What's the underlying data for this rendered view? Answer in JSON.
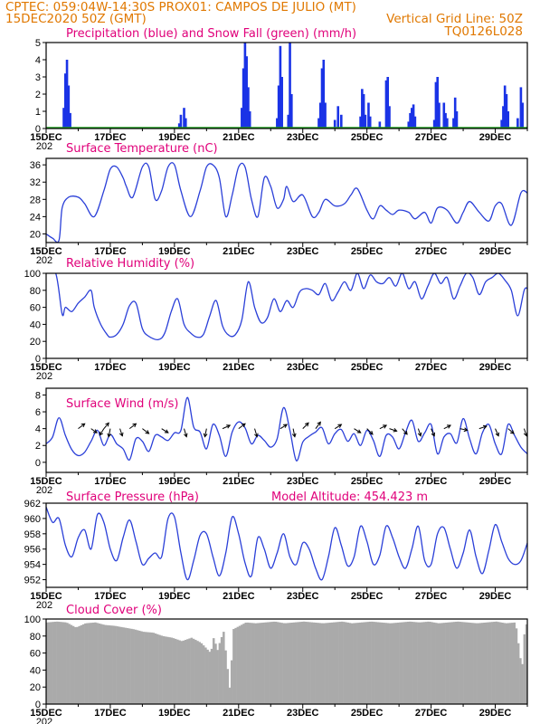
{
  "header": {
    "line1_left": "CPTEC:   059:04W-14:30S   PROX01: CAMPOS DE JULIO (MT)",
    "line2_left": "15DEC2020 50Z (GMT)",
    "line2_right": "Vertical Grid Line: 50Z",
    "line3_right": "TQ0126L028"
  },
  "x_axis": {
    "labels": [
      "15DEC",
      "17DEC",
      "19DEC",
      "21DEC",
      "23DEC",
      "25DEC",
      "27DEC",
      "29DEC"
    ],
    "year_fragment": "202",
    "days_span": 15
  },
  "colors": {
    "precip": "#1a33e6",
    "snow": "#20a020",
    "line": "#2a3fd8",
    "cloud": "#aaaaaa",
    "title": "#e0007a",
    "header": "#e07800",
    "arrow": "#000000"
  },
  "chart_data": [
    {
      "id": "precip",
      "type": "bar",
      "title": "Precipitation (blue) and Snow Fall (green) (mm/h)",
      "ylim": [
        0,
        5
      ],
      "yticks": [
        0,
        1,
        2,
        3,
        4,
        5
      ],
      "x_unit": "days since 15DEC 00Z",
      "snow_value": 0,
      "bars": [
        [
          0.55,
          1.2
        ],
        [
          0.6,
          3.2
        ],
        [
          0.65,
          4.0
        ],
        [
          0.7,
          2.5
        ],
        [
          0.75,
          0.9
        ],
        [
          4.15,
          0.3
        ],
        [
          4.2,
          0.8
        ],
        [
          4.3,
          1.2
        ],
        [
          4.35,
          0.6
        ],
        [
          6.1,
          1.2
        ],
        [
          6.15,
          3.5
        ],
        [
          6.2,
          5.0
        ],
        [
          6.25,
          4.2
        ],
        [
          6.3,
          2.4
        ],
        [
          6.35,
          1.0
        ],
        [
          7.2,
          0.6
        ],
        [
          7.25,
          2.5
        ],
        [
          7.3,
          4.8
        ],
        [
          7.35,
          3.0
        ],
        [
          7.55,
          0.8
        ],
        [
          7.6,
          5.0
        ],
        [
          7.65,
          2.0
        ],
        [
          8.5,
          0.6
        ],
        [
          8.55,
          1.5
        ],
        [
          8.6,
          3.5
        ],
        [
          8.65,
          4.0
        ],
        [
          8.7,
          1.5
        ],
        [
          9.0,
          0.5
        ],
        [
          9.1,
          1.3
        ],
        [
          9.2,
          0.8
        ],
        [
          9.8,
          0.7
        ],
        [
          9.85,
          2.3
        ],
        [
          9.9,
          2.0
        ],
        [
          9.95,
          0.8
        ],
        [
          10.05,
          1.5
        ],
        [
          10.1,
          0.7
        ],
        [
          10.4,
          0.4
        ],
        [
          10.6,
          2.8
        ],
        [
          10.65,
          3.0
        ],
        [
          10.7,
          1.3
        ],
        [
          11.3,
          0.4
        ],
        [
          11.35,
          0.9
        ],
        [
          11.4,
          1.2
        ],
        [
          11.45,
          1.4
        ],
        [
          11.5,
          0.7
        ],
        [
          12.1,
          0.5
        ],
        [
          12.15,
          2.7
        ],
        [
          12.2,
          3.0
        ],
        [
          12.25,
          1.5
        ],
        [
          12.4,
          1.5
        ],
        [
          12.45,
          0.9
        ],
        [
          12.5,
          0.6
        ],
        [
          12.7,
          0.6
        ],
        [
          12.75,
          1.8
        ],
        [
          12.8,
          1.0
        ],
        [
          14.2,
          0.5
        ],
        [
          14.25,
          1.3
        ],
        [
          14.3,
          2.5
        ],
        [
          14.35,
          2.0
        ],
        [
          14.4,
          1.0
        ],
        [
          14.7,
          0.6
        ],
        [
          14.8,
          2.4
        ],
        [
          14.85,
          1.5
        ]
      ]
    },
    {
      "id": "temp",
      "type": "line",
      "title": "Surface Temperature (nC)",
      "ylim": [
        18,
        37.5
      ],
      "yticks": [
        20,
        24,
        28,
        32,
        36
      ],
      "x": [
        0,
        0.2,
        0.4,
        0.5,
        0.7,
        1.0,
        1.2,
        1.5,
        1.8,
        2.0,
        2.2,
        2.4,
        2.5,
        2.7,
        3.0,
        3.2,
        3.4,
        3.6,
        3.8,
        4.0,
        4.2,
        4.5,
        4.8,
        5.0,
        5.2,
        5.4,
        5.6,
        5.8,
        6.0,
        6.2,
        6.4,
        6.6,
        6.8,
        7.0,
        7.2,
        7.4,
        7.5,
        7.7,
        8.0,
        8.3,
        8.5,
        8.7,
        9.0,
        9.3,
        9.5,
        9.7,
        10.0,
        10.2,
        10.4,
        10.6,
        10.8,
        11.0,
        11.3,
        11.5,
        11.8,
        12.0,
        12.2,
        12.5,
        12.8,
        13.0,
        13.2,
        13.5,
        13.8,
        14.0,
        14.2,
        14.5,
        14.8,
        15.0
      ],
      "y": [
        20,
        19,
        18.5,
        26,
        28.5,
        28.5,
        27,
        24,
        30,
        35,
        35.5,
        33,
        31,
        28.5,
        35.5,
        35.5,
        28,
        30,
        35.5,
        36,
        30,
        24,
        30,
        35.5,
        36,
        33,
        24,
        29,
        35.5,
        35.5,
        28,
        24,
        33,
        31,
        26,
        28,
        31,
        27.5,
        29,
        24,
        25,
        28,
        26.5,
        27,
        29,
        30.5,
        25.5,
        23.5,
        26.5,
        25.5,
        24.5,
        25.5,
        25,
        23.5,
        25,
        22.5,
        26,
        25.5,
        22.5,
        25,
        27.5,
        25,
        23,
        26.5,
        27,
        22,
        29.5,
        29.5
      ]
    },
    {
      "id": "rh",
      "type": "line",
      "title": "Relative Humidity (%)",
      "ylim": [
        0,
        100
      ],
      "yticks": [
        0,
        20,
        40,
        60,
        80,
        100
      ],
      "x": [
        0,
        0.3,
        0.5,
        0.6,
        0.8,
        1.0,
        1.2,
        1.4,
        1.5,
        1.7,
        1.9,
        2.0,
        2.2,
        2.4,
        2.6,
        2.8,
        3.0,
        3.2,
        3.5,
        3.7,
        3.9,
        4.1,
        4.3,
        4.5,
        4.7,
        4.9,
        5.1,
        5.3,
        5.5,
        5.7,
        5.9,
        6.1,
        6.3,
        6.5,
        6.7,
        6.9,
        7.1,
        7.3,
        7.5,
        7.7,
        7.9,
        8.1,
        8.3,
        8.5,
        8.7,
        8.9,
        9.1,
        9.3,
        9.5,
        9.7,
        9.9,
        10.1,
        10.3,
        10.5,
        10.7,
        10.9,
        11.1,
        11.3,
        11.5,
        11.7,
        11.9,
        12.1,
        12.3,
        12.5,
        12.7,
        12.9,
        13.1,
        13.3,
        13.5,
        13.7,
        13.9,
        14.1,
        14.3,
        14.5,
        14.7,
        14.9,
        15.0
      ],
      "y": [
        100,
        100,
        52,
        60,
        55,
        65,
        72,
        80,
        60,
        40,
        28,
        25,
        28,
        40,
        62,
        65,
        35,
        26,
        22,
        30,
        55,
        70,
        40,
        30,
        25,
        28,
        50,
        68,
        38,
        27,
        28,
        45,
        90,
        60,
        42,
        48,
        70,
        55,
        68,
        60,
        78,
        82,
        80,
        75,
        88,
        68,
        78,
        90,
        80,
        100,
        82,
        98,
        90,
        88,
        95,
        85,
        100,
        82,
        90,
        70,
        85,
        100,
        88,
        95,
        70,
        85,
        100,
        95,
        75,
        90,
        95,
        100,
        92,
        80,
        50,
        80,
        82
      ]
    },
    {
      "id": "wind",
      "type": "line",
      "title": "Surface Wind (m/s)",
      "ylim": [
        -1.2,
        8.8
      ],
      "yticks": [
        0,
        2,
        4,
        6,
        8
      ],
      "x": [
        0,
        0.2,
        0.4,
        0.6,
        0.8,
        1.0,
        1.2,
        1.4,
        1.6,
        1.8,
        2.0,
        2.2,
        2.4,
        2.6,
        2.8,
        3.0,
        3.2,
        3.4,
        3.6,
        3.8,
        4.0,
        4.2,
        4.4,
        4.6,
        4.8,
        5.0,
        5.2,
        5.4,
        5.6,
        5.8,
        6.0,
        6.2,
        6.4,
        6.6,
        6.8,
        7.0,
        7.2,
        7.4,
        7.6,
        7.8,
        8.0,
        8.2,
        8.4,
        8.6,
        8.8,
        9.0,
        9.2,
        9.4,
        9.6,
        9.8,
        10.0,
        10.2,
        10.4,
        10.6,
        10.8,
        11.0,
        11.2,
        11.4,
        11.6,
        11.8,
        12.0,
        12.2,
        12.4,
        12.6,
        12.8,
        13.0,
        13.2,
        13.4,
        13.6,
        13.8,
        14.0,
        14.2,
        14.4,
        14.6,
        14.8,
        15.0
      ],
      "y": [
        2.2,
        3.0,
        5.3,
        3.2,
        1.5,
        0.8,
        1.2,
        2.5,
        3.8,
        2.0,
        3.3,
        2.2,
        1.6,
        0.3,
        2.8,
        2.5,
        1.3,
        3.2,
        3.0,
        2.6,
        3.5,
        3.8,
        7.7,
        4.2,
        3.6,
        1.6,
        4.5,
        3.2,
        0.7,
        3.6,
        4.8,
        4.1,
        2.2,
        3.2,
        2.6,
        1.8,
        2.8,
        6.5,
        3.8,
        0.2,
        2.4,
        3.1,
        3.6,
        4.1,
        2.2,
        3.4,
        3.9,
        2.5,
        3.4,
        2.0,
        3.8,
        2.6,
        0.7,
        3.2,
        3.0,
        1.6,
        3.5,
        5.0,
        2.5,
        3.5,
        4.5,
        1.0,
        3.0,
        3.4,
        2.3,
        5.2,
        2.8,
        1.0,
        3.5,
        4.5,
        2.2,
        1.0,
        4.5,
        3.2,
        1.8,
        1.0
      ]
    },
    {
      "id": "wind_arrows",
      "type": "vector",
      "note": "wind direction arrows drawn at y=4 m/s",
      "arrows": [
        [
          1.0,
          0.8,
          -0.6
        ],
        [
          1.4,
          0.7,
          0.5
        ],
        [
          1.8,
          -0.5,
          0.8
        ],
        [
          1.8,
          0.6,
          -0.7
        ],
        [
          2.0,
          -0.2,
          1.0
        ],
        [
          2.3,
          0.3,
          0.9
        ],
        [
          2.6,
          0.8,
          -0.6
        ],
        [
          3.0,
          0.8,
          0.6
        ],
        [
          3.6,
          0.8,
          0.5
        ],
        [
          4.3,
          0.3,
          1.0
        ],
        [
          5.0,
          -0.2,
          1.0
        ],
        [
          5.5,
          0.9,
          -0.4
        ],
        [
          6.0,
          0.8,
          -0.6
        ],
        [
          6.5,
          0.3,
          1.0
        ],
        [
          7.3,
          0.8,
          -0.5
        ],
        [
          7.7,
          0.2,
          1.0
        ],
        [
          8.0,
          0.7,
          -0.7
        ],
        [
          8.4,
          0.6,
          -0.8
        ],
        [
          9.0,
          0.8,
          -0.5
        ],
        [
          9.6,
          0.8,
          0.5
        ],
        [
          10.0,
          0.7,
          0.7
        ],
        [
          10.4,
          0.8,
          -0.4
        ],
        [
          10.7,
          0.9,
          0.3
        ],
        [
          11.1,
          0.6,
          0.7
        ],
        [
          11.6,
          0.3,
          0.9
        ],
        [
          12.0,
          0.4,
          0.9
        ],
        [
          12.4,
          0.8,
          -0.4
        ],
        [
          12.9,
          0.9,
          0.2
        ],
        [
          13.5,
          0.9,
          -0.3
        ],
        [
          14.0,
          0.4,
          0.9
        ],
        [
          14.4,
          0.7,
          0.6
        ],
        [
          14.9,
          0.3,
          0.9
        ]
      ]
    },
    {
      "id": "pres",
      "type": "line",
      "title": "Surface Pressure (hPa)",
      "subtitle": "Model Altitude: 454.423 m",
      "ylim": [
        951,
        962
      ],
      "yticks": [
        952,
        954,
        956,
        958,
        960,
        962
      ],
      "x": [
        0,
        0.2,
        0.4,
        0.6,
        0.8,
        1.0,
        1.2,
        1.4,
        1.6,
        1.8,
        2.0,
        2.2,
        2.4,
        2.6,
        2.8,
        3.0,
        3.2,
        3.4,
        3.6,
        3.8,
        4.0,
        4.2,
        4.4,
        4.6,
        4.8,
        5.0,
        5.2,
        5.4,
        5.6,
        5.8,
        6.0,
        6.2,
        6.4,
        6.6,
        6.8,
        7.0,
        7.2,
        7.4,
        7.6,
        7.8,
        8.0,
        8.2,
        8.4,
        8.6,
        8.8,
        9.0,
        9.2,
        9.4,
        9.6,
        9.8,
        10.0,
        10.2,
        10.4,
        10.6,
        10.8,
        11.0,
        11.2,
        11.4,
        11.6,
        11.8,
        12.0,
        12.2,
        12.4,
        12.6,
        12.8,
        13.0,
        13.2,
        13.4,
        13.6,
        13.8,
        14.0,
        14.2,
        14.4,
        14.6,
        14.8,
        15.0
      ],
      "y": [
        961.5,
        959.5,
        960.0,
        956.5,
        955.0,
        957.5,
        958.5,
        956.0,
        960.5,
        959.5,
        956.0,
        954.5,
        957.5,
        959.8,
        957.0,
        954.0,
        954.8,
        955.5,
        955.0,
        960.0,
        960.2,
        955.5,
        952.0,
        954.5,
        957.8,
        958.0,
        955.0,
        952.5,
        955.5,
        960.2,
        958.0,
        954.2,
        952.5,
        957.5,
        956.0,
        953.5,
        955.5,
        958.0,
        955.0,
        954.0,
        956.8,
        956.0,
        953.5,
        952.0,
        955.0,
        958.8,
        956.5,
        953.8,
        955.0,
        959.0,
        957.0,
        954.0,
        955.2,
        959.0,
        957.5,
        955.0,
        953.5,
        956.0,
        959.0,
        954.5,
        954.0,
        958.0,
        958.8,
        956.0,
        953.5,
        955.5,
        958.5,
        955.0,
        952.8,
        955.8,
        959.2,
        957.0,
        954.8,
        954.0,
        954.5,
        956.8
      ]
    },
    {
      "id": "cloud",
      "type": "area",
      "title": "Cloud Cover (%)",
      "ylim": [
        0,
        100
      ],
      "yticks": [
        0,
        20,
        40,
        60,
        80,
        100
      ],
      "x": [
        0,
        0.3,
        0.6,
        0.9,
        1.2,
        1.5,
        1.8,
        2.1,
        2.4,
        2.7,
        3.0,
        3.3,
        3.6,
        3.9,
        4.2,
        4.5,
        4.8,
        5.1,
        5.2,
        5.3,
        5.4,
        5.5,
        5.7,
        5.8,
        6.0,
        6.2,
        6.5,
        6.8,
        7.1,
        7.4,
        7.7,
        8.0,
        8.3,
        8.6,
        8.9,
        9.2,
        9.5,
        9.8,
        10.1,
        10.4,
        10.7,
        11.0,
        11.3,
        11.6,
        11.9,
        12.2,
        12.5,
        12.8,
        13.1,
        13.4,
        13.7,
        14.0,
        14.3,
        14.6,
        14.8,
        14.9,
        15.0
      ],
      "y": [
        96,
        97,
        96,
        90,
        95,
        96,
        93,
        92,
        90,
        88,
        85,
        84,
        80,
        78,
        74,
        78,
        72,
        60,
        80,
        62,
        75,
        85,
        15,
        88,
        92,
        96,
        95,
        96,
        97,
        95,
        96,
        97,
        96,
        95,
        96,
        97,
        95,
        96,
        97,
        96,
        95,
        96,
        97,
        96,
        97,
        95,
        96,
        97,
        96,
        95,
        96,
        97,
        95,
        96,
        40,
        96,
        90
      ]
    }
  ],
  "panels_meta": {
    "precip": {
      "title": "Precipitation (blue) and Snow Fall (green) (mm/h)"
    },
    "temp": {
      "title": "Surface Temperature (nC)"
    },
    "rh": {
      "title": "Relative Humidity (%)"
    },
    "wind": {
      "title": "Surface Wind (m/s)"
    },
    "pres": {
      "title": "Surface Pressure (hPa)",
      "subtitle": "Model Altitude: 454.423 m"
    },
    "cloud": {
      "title": "Cloud Cover (%)"
    }
  }
}
